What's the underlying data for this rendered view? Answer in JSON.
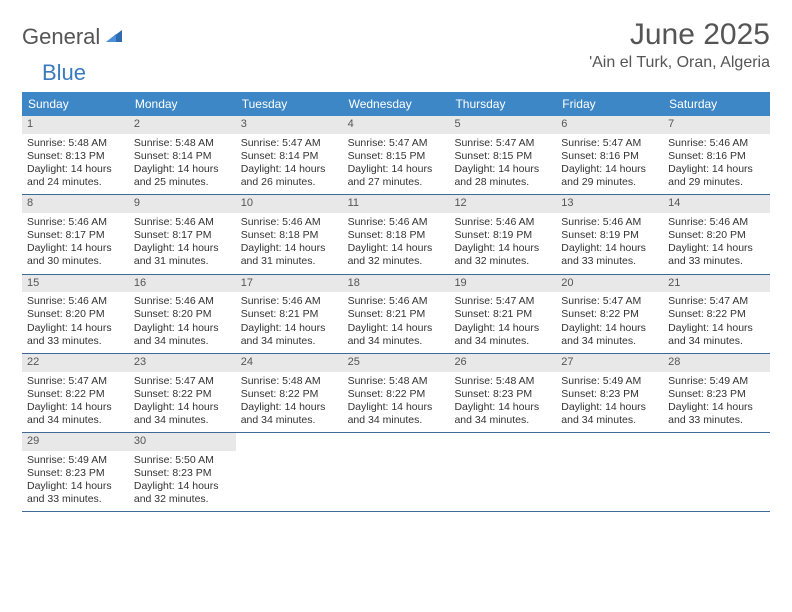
{
  "logo": {
    "text_general": "General",
    "text_blue": "Blue"
  },
  "title": "June 2025",
  "location": "'Ain el Turk, Oran, Algeria",
  "colors": {
    "header_bg": "#3d87c7",
    "header_text": "#ffffff",
    "date_bar_bg": "#e8e8e8",
    "row_border": "#3d6b99",
    "title_color": "#555555",
    "logo_blue": "#3a7bbf",
    "body_text": "#333333"
  },
  "typography": {
    "title_fontsize": 30,
    "location_fontsize": 16,
    "dayheader_fontsize": 12,
    "cell_fontsize": 10.5
  },
  "day_headers": [
    "Sunday",
    "Monday",
    "Tuesday",
    "Wednesday",
    "Thursday",
    "Friday",
    "Saturday"
  ],
  "weeks": [
    [
      {
        "date": "1",
        "sunrise": "Sunrise: 5:48 AM",
        "sunset": "Sunset: 8:13 PM",
        "daylight1": "Daylight: 14 hours",
        "daylight2": "and 24 minutes."
      },
      {
        "date": "2",
        "sunrise": "Sunrise: 5:48 AM",
        "sunset": "Sunset: 8:14 PM",
        "daylight1": "Daylight: 14 hours",
        "daylight2": "and 25 minutes."
      },
      {
        "date": "3",
        "sunrise": "Sunrise: 5:47 AM",
        "sunset": "Sunset: 8:14 PM",
        "daylight1": "Daylight: 14 hours",
        "daylight2": "and 26 minutes."
      },
      {
        "date": "4",
        "sunrise": "Sunrise: 5:47 AM",
        "sunset": "Sunset: 8:15 PM",
        "daylight1": "Daylight: 14 hours",
        "daylight2": "and 27 minutes."
      },
      {
        "date": "5",
        "sunrise": "Sunrise: 5:47 AM",
        "sunset": "Sunset: 8:15 PM",
        "daylight1": "Daylight: 14 hours",
        "daylight2": "and 28 minutes."
      },
      {
        "date": "6",
        "sunrise": "Sunrise: 5:47 AM",
        "sunset": "Sunset: 8:16 PM",
        "daylight1": "Daylight: 14 hours",
        "daylight2": "and 29 minutes."
      },
      {
        "date": "7",
        "sunrise": "Sunrise: 5:46 AM",
        "sunset": "Sunset: 8:16 PM",
        "daylight1": "Daylight: 14 hours",
        "daylight2": "and 29 minutes."
      }
    ],
    [
      {
        "date": "8",
        "sunrise": "Sunrise: 5:46 AM",
        "sunset": "Sunset: 8:17 PM",
        "daylight1": "Daylight: 14 hours",
        "daylight2": "and 30 minutes."
      },
      {
        "date": "9",
        "sunrise": "Sunrise: 5:46 AM",
        "sunset": "Sunset: 8:17 PM",
        "daylight1": "Daylight: 14 hours",
        "daylight2": "and 31 minutes."
      },
      {
        "date": "10",
        "sunrise": "Sunrise: 5:46 AM",
        "sunset": "Sunset: 8:18 PM",
        "daylight1": "Daylight: 14 hours",
        "daylight2": "and 31 minutes."
      },
      {
        "date": "11",
        "sunrise": "Sunrise: 5:46 AM",
        "sunset": "Sunset: 8:18 PM",
        "daylight1": "Daylight: 14 hours",
        "daylight2": "and 32 minutes."
      },
      {
        "date": "12",
        "sunrise": "Sunrise: 5:46 AM",
        "sunset": "Sunset: 8:19 PM",
        "daylight1": "Daylight: 14 hours",
        "daylight2": "and 32 minutes."
      },
      {
        "date": "13",
        "sunrise": "Sunrise: 5:46 AM",
        "sunset": "Sunset: 8:19 PM",
        "daylight1": "Daylight: 14 hours",
        "daylight2": "and 33 minutes."
      },
      {
        "date": "14",
        "sunrise": "Sunrise: 5:46 AM",
        "sunset": "Sunset: 8:20 PM",
        "daylight1": "Daylight: 14 hours",
        "daylight2": "and 33 minutes."
      }
    ],
    [
      {
        "date": "15",
        "sunrise": "Sunrise: 5:46 AM",
        "sunset": "Sunset: 8:20 PM",
        "daylight1": "Daylight: 14 hours",
        "daylight2": "and 33 minutes."
      },
      {
        "date": "16",
        "sunrise": "Sunrise: 5:46 AM",
        "sunset": "Sunset: 8:20 PM",
        "daylight1": "Daylight: 14 hours",
        "daylight2": "and 34 minutes."
      },
      {
        "date": "17",
        "sunrise": "Sunrise: 5:46 AM",
        "sunset": "Sunset: 8:21 PM",
        "daylight1": "Daylight: 14 hours",
        "daylight2": "and 34 minutes."
      },
      {
        "date": "18",
        "sunrise": "Sunrise: 5:46 AM",
        "sunset": "Sunset: 8:21 PM",
        "daylight1": "Daylight: 14 hours",
        "daylight2": "and 34 minutes."
      },
      {
        "date": "19",
        "sunrise": "Sunrise: 5:47 AM",
        "sunset": "Sunset: 8:21 PM",
        "daylight1": "Daylight: 14 hours",
        "daylight2": "and 34 minutes."
      },
      {
        "date": "20",
        "sunrise": "Sunrise: 5:47 AM",
        "sunset": "Sunset: 8:22 PM",
        "daylight1": "Daylight: 14 hours",
        "daylight2": "and 34 minutes."
      },
      {
        "date": "21",
        "sunrise": "Sunrise: 5:47 AM",
        "sunset": "Sunset: 8:22 PM",
        "daylight1": "Daylight: 14 hours",
        "daylight2": "and 34 minutes."
      }
    ],
    [
      {
        "date": "22",
        "sunrise": "Sunrise: 5:47 AM",
        "sunset": "Sunset: 8:22 PM",
        "daylight1": "Daylight: 14 hours",
        "daylight2": "and 34 minutes."
      },
      {
        "date": "23",
        "sunrise": "Sunrise: 5:47 AM",
        "sunset": "Sunset: 8:22 PM",
        "daylight1": "Daylight: 14 hours",
        "daylight2": "and 34 minutes."
      },
      {
        "date": "24",
        "sunrise": "Sunrise: 5:48 AM",
        "sunset": "Sunset: 8:22 PM",
        "daylight1": "Daylight: 14 hours",
        "daylight2": "and 34 minutes."
      },
      {
        "date": "25",
        "sunrise": "Sunrise: 5:48 AM",
        "sunset": "Sunset: 8:22 PM",
        "daylight1": "Daylight: 14 hours",
        "daylight2": "and 34 minutes."
      },
      {
        "date": "26",
        "sunrise": "Sunrise: 5:48 AM",
        "sunset": "Sunset: 8:23 PM",
        "daylight1": "Daylight: 14 hours",
        "daylight2": "and 34 minutes."
      },
      {
        "date": "27",
        "sunrise": "Sunrise: 5:49 AM",
        "sunset": "Sunset: 8:23 PM",
        "daylight1": "Daylight: 14 hours",
        "daylight2": "and 34 minutes."
      },
      {
        "date": "28",
        "sunrise": "Sunrise: 5:49 AM",
        "sunset": "Sunset: 8:23 PM",
        "daylight1": "Daylight: 14 hours",
        "daylight2": "and 33 minutes."
      }
    ],
    [
      {
        "date": "29",
        "sunrise": "Sunrise: 5:49 AM",
        "sunset": "Sunset: 8:23 PM",
        "daylight1": "Daylight: 14 hours",
        "daylight2": "and 33 minutes."
      },
      {
        "date": "30",
        "sunrise": "Sunrise: 5:50 AM",
        "sunset": "Sunset: 8:23 PM",
        "daylight1": "Daylight: 14 hours",
        "daylight2": "and 32 minutes."
      },
      null,
      null,
      null,
      null,
      null
    ]
  ]
}
